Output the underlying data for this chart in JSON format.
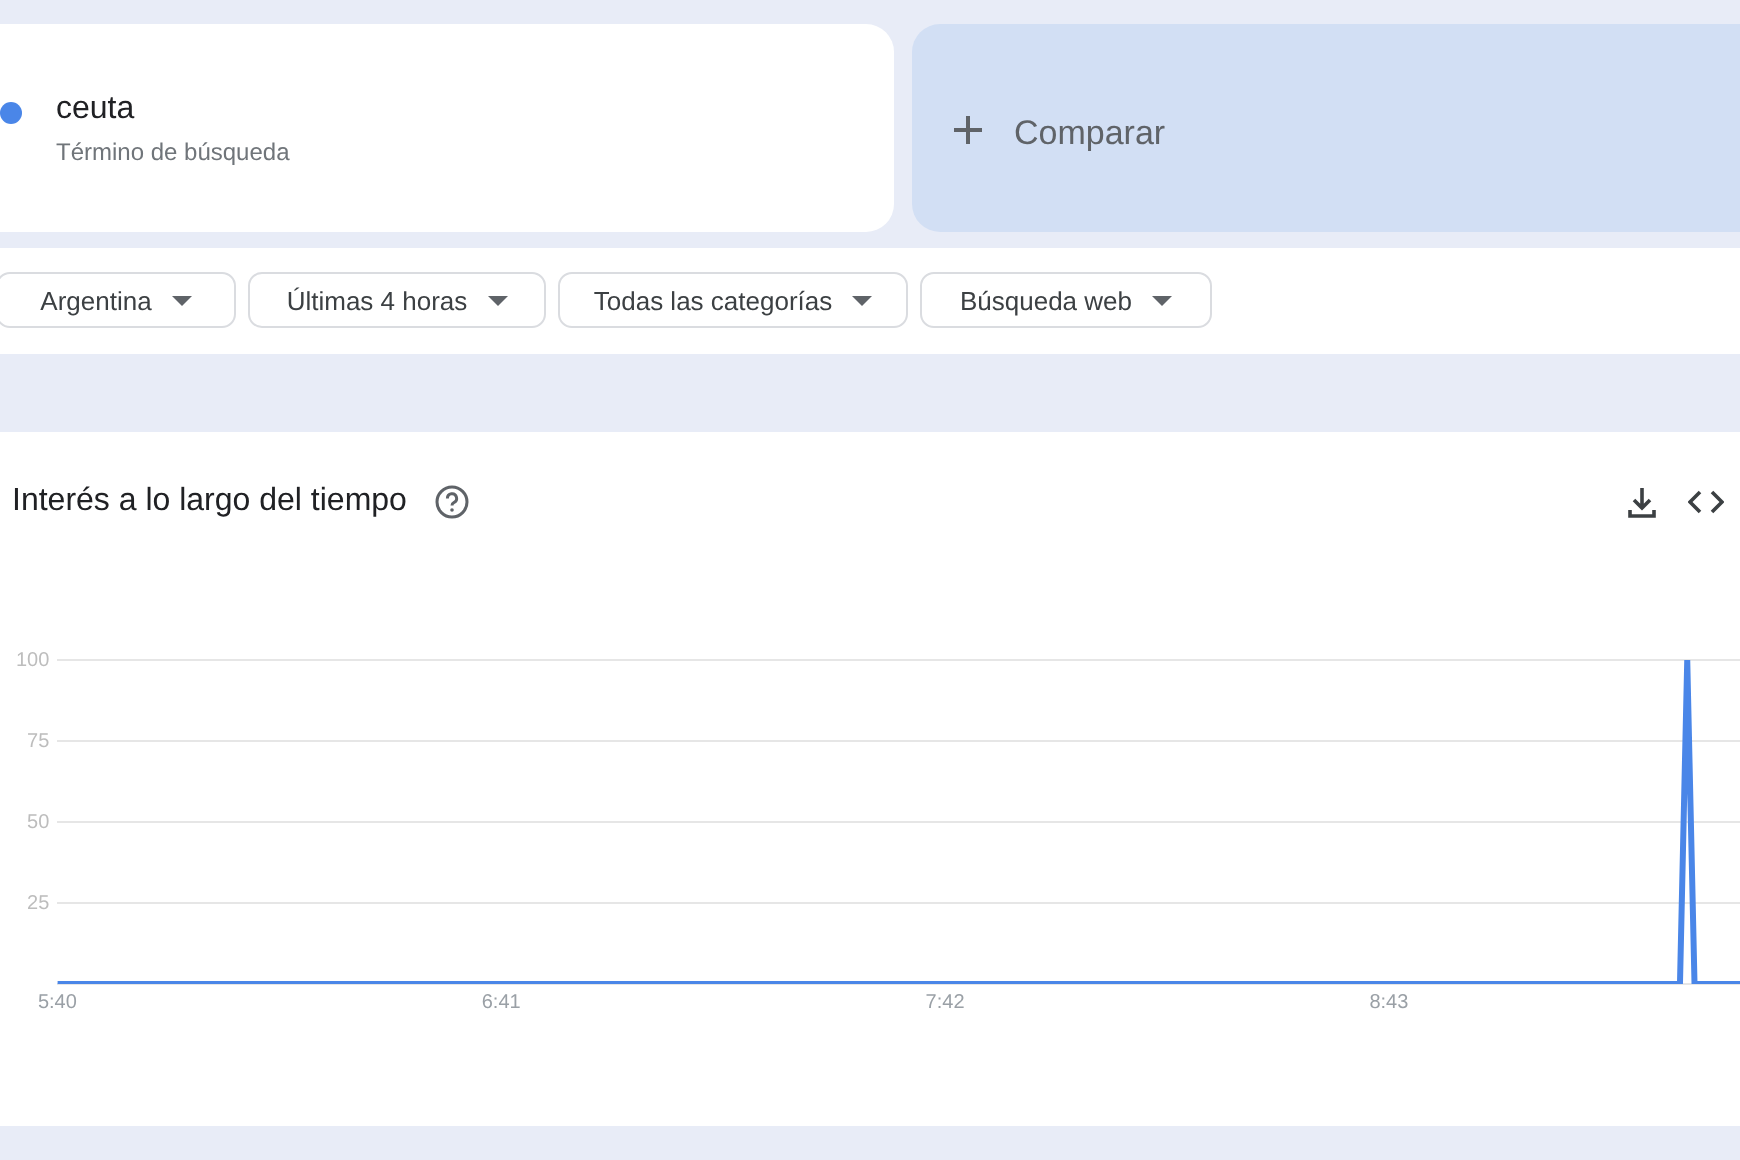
{
  "chart_data": {
    "type": "line",
    "title": "Interés a lo largo del tiempo",
    "annotations": [
      "Término de búsqueda",
      "Comparar",
      "Argentina",
      "Últimas 4 horas",
      "Todas las categorías",
      "Búsqueda web"
    ],
    "x": [
      5.666667,
      9.383333,
      9.4,
      9.416667,
      9.566667
    ],
    "series": [
      {
        "name": "ceuta",
        "color": "#4a86e8",
        "values": [
          0,
          0,
          100,
          0,
          0
        ]
      }
    ],
    "xlim": [
      5.666667,
      9.566667
    ],
    "xticks": [
      {
        "value": 5.666667,
        "label": "5:40"
      },
      {
        "value": 6.683333,
        "label": "6:41"
      },
      {
        "value": 7.7,
        "label": "7:42"
      },
      {
        "value": 8.716667,
        "label": "8:43"
      }
    ],
    "ylim": [
      0,
      100
    ],
    "yticks": [
      {
        "value": 0,
        "label": null
      },
      25,
      50,
      75,
      100
    ],
    "grid": "y",
    "legend": "top",
    "marker": "none",
    "line_style": "solid"
  }
}
